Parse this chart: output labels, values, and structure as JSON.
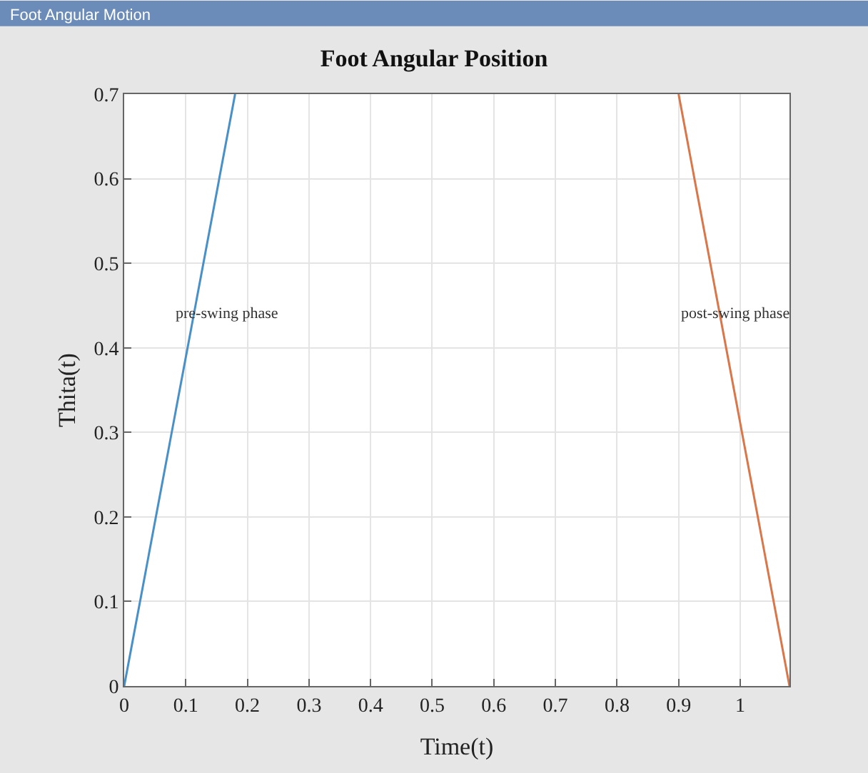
{
  "chart_data": {
    "type": "line",
    "title": "Foot Angular Position",
    "xlabel": "Time(t)",
    "ylabel": "Thita(t)",
    "series": [
      {
        "color": "#4a90c8",
        "x": [
          0,
          0.18
        ],
        "values": [
          0,
          0.7
        ]
      },
      {
        "color": "#d9764a",
        "x": [
          0.9,
          1.08
        ],
        "values": [
          0.7,
          0
        ]
      }
    ],
    "xlim": [
      0,
      1.08
    ],
    "xticks": [
      0,
      0.1,
      0.2,
      0.3,
      0.4,
      0.5,
      0.6,
      0.7,
      0.8,
      0.9,
      1
    ],
    "ylim": [
      0,
      0.7
    ],
    "yticks": [
      0,
      0.1,
      0.2,
      0.3,
      0.4,
      0.5,
      0.6,
      0.7
    ],
    "grid": true,
    "annotations": [
      "pre-swing phase",
      "post-swing phase",
      "Foot Angular Motion"
    ]
  }
}
